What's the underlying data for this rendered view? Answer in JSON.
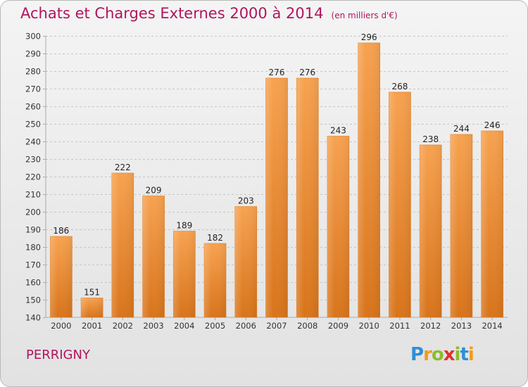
{
  "chart_data": {
    "type": "bar",
    "title": "Achats et Charges Externes 2000 à 2014",
    "subtitle": "(en milliers d'€)",
    "categories": [
      "2000",
      "2001",
      "2002",
      "2003",
      "2004",
      "2005",
      "2006",
      "2007",
      "2008",
      "2009",
      "2010",
      "2011",
      "2012",
      "2013",
      "2014"
    ],
    "values": [
      186,
      151,
      222,
      209,
      189,
      182,
      203,
      276,
      276,
      243,
      296,
      268,
      238,
      244,
      246
    ],
    "ylim": [
      140,
      300
    ],
    "ytick_step": 10,
    "grid": true,
    "bar_color": "#f0882a"
  },
  "location": "PERRIGNY",
  "logo": {
    "letters": [
      "P",
      "r",
      "o",
      "x",
      "i",
      "t",
      "i"
    ],
    "colors": [
      "#2f8fd6",
      "#f39a1c",
      "#8bbd2c",
      "#e2312d",
      "#8bbd2c",
      "#2f8fd6",
      "#f39a1c"
    ]
  }
}
